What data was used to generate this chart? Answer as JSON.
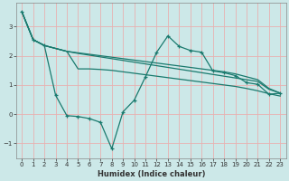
{
  "xlabel": "Humidex (Indice chaleur)",
  "bg_color": "#cce8e8",
  "grid_color": "#e8b0b0",
  "line_color": "#1a7a6e",
  "x_data": [
    0,
    1,
    2,
    3,
    4,
    5,
    6,
    7,
    8,
    9,
    10,
    11,
    12,
    13,
    14,
    15,
    16,
    17,
    18,
    19,
    20,
    21,
    22,
    23
  ],
  "series1": [
    3.5,
    2.55,
    2.35,
    2.25,
    2.15,
    2.08,
    2.02,
    1.96,
    1.9,
    1.84,
    1.78,
    1.72,
    1.66,
    1.6,
    1.54,
    1.48,
    1.42,
    1.36,
    1.3,
    1.24,
    1.18,
    1.12,
    0.85,
    0.72
  ],
  "series2": [
    3.5,
    2.55,
    2.35,
    2.25,
    2.15,
    2.1,
    2.05,
    2.0,
    1.95,
    1.9,
    1.85,
    1.8,
    1.75,
    1.7,
    1.65,
    1.6,
    1.55,
    1.5,
    1.45,
    1.38,
    1.28,
    1.18,
    0.88,
    0.72
  ],
  "series3": [
    3.5,
    2.55,
    2.35,
    2.25,
    2.15,
    1.55,
    1.55,
    1.53,
    1.5,
    1.45,
    1.4,
    1.35,
    1.3,
    1.25,
    1.2,
    1.15,
    1.1,
    1.05,
    1.0,
    0.95,
    0.88,
    0.8,
    0.7,
    0.62
  ],
  "series4": [
    3.5,
    2.55,
    2.35,
    0.65,
    -0.05,
    -0.08,
    -0.15,
    -0.28,
    -1.18,
    0.08,
    0.48,
    1.28,
    2.12,
    2.68,
    2.32,
    2.18,
    2.12,
    1.48,
    1.42,
    1.32,
    1.08,
    1.02,
    0.68,
    0.72
  ],
  "ylim": [
    -1.5,
    3.8
  ],
  "xlim": [
    -0.5,
    23.5
  ],
  "yticks": [
    -1,
    0,
    1,
    2,
    3
  ],
  "xticks": [
    0,
    1,
    2,
    3,
    4,
    5,
    6,
    7,
    8,
    9,
    10,
    11,
    12,
    13,
    14,
    15,
    16,
    17,
    18,
    19,
    20,
    21,
    22,
    23
  ],
  "xlabel_fontsize": 6.0,
  "tick_fontsize": 5.0
}
